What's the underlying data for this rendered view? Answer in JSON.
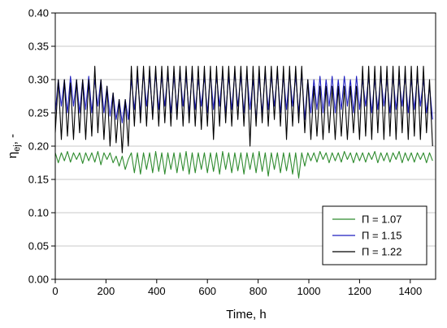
{
  "chart_data": {
    "type": "line",
    "xlabel": "Time, h",
    "ylabel": {
      "symbol": "η",
      "subscript": "ej",
      "suffix": ", -"
    },
    "xlim": [
      0,
      1500
    ],
    "ylim": [
      0,
      0.4
    ],
    "xticks": [
      0,
      200,
      400,
      600,
      800,
      1000,
      1200,
      1400
    ],
    "yticks": [
      {
        "value": 0,
        "label": "0.00"
      },
      {
        "value": 0.05,
        "label": "0.05"
      },
      {
        "value": 0.1,
        "label": "0.10"
      },
      {
        "value": 0.15,
        "label": "0.15"
      },
      {
        "value": 0.2,
        "label": "0.20"
      },
      {
        "value": 0.25,
        "label": "0.25"
      },
      {
        "value": 0.3,
        "label": "0.30"
      },
      {
        "value": 0.35,
        "label": "0.35"
      },
      {
        "value": 0.4,
        "label": "0.40"
      }
    ],
    "grid": true,
    "legend": "lower right",
    "x": [
      0,
      12,
      24,
      36,
      48,
      60,
      72,
      84,
      96,
      108,
      120,
      132,
      144,
      156,
      168,
      180,
      192,
      204,
      216,
      228,
      240,
      252,
      264,
      276,
      288,
      300,
      312,
      324,
      336,
      348,
      360,
      372,
      384,
      396,
      408,
      420,
      432,
      444,
      456,
      468,
      480,
      492,
      504,
      516,
      528,
      540,
      552,
      564,
      576,
      588,
      600,
      612,
      624,
      636,
      648,
      660,
      672,
      684,
      696,
      708,
      720,
      732,
      744,
      756,
      768,
      780,
      792,
      804,
      816,
      828,
      840,
      852,
      864,
      876,
      888,
      900,
      912,
      924,
      936,
      948,
      960,
      972,
      984,
      996,
      1008,
      1020,
      1032,
      1044,
      1056,
      1068,
      1080,
      1092,
      1104,
      1116,
      1128,
      1140,
      1152,
      1164,
      1176,
      1188,
      1200,
      1212,
      1224,
      1236,
      1248,
      1260,
      1272,
      1284,
      1296,
      1308,
      1320,
      1332,
      1344,
      1356,
      1368,
      1380,
      1392,
      1404,
      1416,
      1428,
      1440,
      1452,
      1464,
      1476,
      1488
    ],
    "series": [
      {
        "name": "Π = 1.07",
        "color": "#2e8b2e",
        "values": [
          0.19,
          0.175,
          0.19,
          0.178,
          0.192,
          0.176,
          0.19,
          0.18,
          0.19,
          0.174,
          0.19,
          0.178,
          0.19,
          0.176,
          0.192,
          0.172,
          0.19,
          0.18,
          0.19,
          0.175,
          0.185,
          0.17,
          0.185,
          0.165,
          0.18,
          0.19,
          0.16,
          0.19,
          0.158,
          0.19,
          0.165,
          0.19,
          0.16,
          0.192,
          0.162,
          0.19,
          0.158,
          0.19,
          0.165,
          0.19,
          0.16,
          0.19,
          0.163,
          0.192,
          0.158,
          0.19,
          0.16,
          0.19,
          0.165,
          0.19,
          0.16,
          0.19,
          0.162,
          0.19,
          0.158,
          0.192,
          0.165,
          0.19,
          0.16,
          0.19,
          0.163,
          0.19,
          0.158,
          0.19,
          0.165,
          0.19,
          0.16,
          0.192,
          0.162,
          0.19,
          0.155,
          0.19,
          0.165,
          0.19,
          0.16,
          0.19,
          0.163,
          0.19,
          0.158,
          0.19,
          0.152,
          0.19,
          0.17,
          0.19,
          0.178,
          0.19,
          0.176,
          0.192,
          0.18,
          0.19,
          0.175,
          0.19,
          0.178,
          0.19,
          0.176,
          0.192,
          0.18,
          0.19,
          0.175,
          0.19,
          0.178,
          0.19,
          0.176,
          0.19,
          0.18,
          0.192,
          0.175,
          0.19,
          0.178,
          0.19,
          0.176,
          0.19,
          0.18,
          0.192,
          0.175,
          0.19,
          0.178,
          0.19,
          0.176,
          0.19,
          0.18,
          0.19,
          0.175,
          0.19,
          0.178
        ]
      },
      {
        "name": "Π = 1.15",
        "color": "#1f1fbf",
        "values": [
          0.25,
          0.3,
          0.26,
          0.3,
          0.25,
          0.305,
          0.26,
          0.3,
          0.25,
          0.3,
          0.255,
          0.305,
          0.25,
          0.3,
          0.26,
          0.3,
          0.25,
          0.29,
          0.245,
          0.28,
          0.24,
          0.27,
          0.235,
          0.27,
          0.24,
          0.3,
          0.255,
          0.305,
          0.25,
          0.31,
          0.26,
          0.305,
          0.25,
          0.31,
          0.255,
          0.305,
          0.26,
          0.31,
          0.25,
          0.305,
          0.255,
          0.31,
          0.26,
          0.305,
          0.25,
          0.31,
          0.255,
          0.3,
          0.26,
          0.305,
          0.25,
          0.31,
          0.255,
          0.305,
          0.26,
          0.31,
          0.25,
          0.305,
          0.255,
          0.31,
          0.26,
          0.305,
          0.25,
          0.31,
          0.255,
          0.3,
          0.24,
          0.305,
          0.25,
          0.31,
          0.255,
          0.305,
          0.26,
          0.31,
          0.25,
          0.305,
          0.255,
          0.31,
          0.26,
          0.305,
          0.25,
          0.31,
          0.24,
          0.3,
          0.25,
          0.3,
          0.255,
          0.305,
          0.25,
          0.3,
          0.26,
          0.305,
          0.25,
          0.3,
          0.255,
          0.305,
          0.26,
          0.3,
          0.25,
          0.305,
          0.255,
          0.3,
          0.26,
          0.305,
          0.25,
          0.3,
          0.255,
          0.305,
          0.26,
          0.3,
          0.25,
          0.305,
          0.255,
          0.3,
          0.26,
          0.305,
          0.25,
          0.3,
          0.255,
          0.305,
          0.26,
          0.3,
          0.25,
          0.29,
          0.24
        ]
      },
      {
        "name": "Π = 1.22",
        "color": "#000000",
        "values": [
          0.22,
          0.3,
          0.21,
          0.3,
          0.215,
          0.295,
          0.21,
          0.3,
          0.22,
          0.3,
          0.21,
          0.3,
          0.215,
          0.32,
          0.22,
          0.3,
          0.21,
          0.29,
          0.2,
          0.28,
          0.205,
          0.27,
          0.19,
          0.27,
          0.2,
          0.32,
          0.23,
          0.32,
          0.235,
          0.32,
          0.23,
          0.32,
          0.24,
          0.32,
          0.23,
          0.32,
          0.235,
          0.32,
          0.23,
          0.32,
          0.24,
          0.32,
          0.23,
          0.32,
          0.235,
          0.32,
          0.23,
          0.32,
          0.225,
          0.32,
          0.23,
          0.32,
          0.21,
          0.32,
          0.23,
          0.32,
          0.235,
          0.32,
          0.23,
          0.32,
          0.24,
          0.32,
          0.23,
          0.32,
          0.2,
          0.32,
          0.23,
          0.32,
          0.235,
          0.32,
          0.23,
          0.32,
          0.24,
          0.32,
          0.23,
          0.32,
          0.21,
          0.32,
          0.23,
          0.32,
          0.235,
          0.32,
          0.22,
          0.3,
          0.21,
          0.29,
          0.215,
          0.29,
          0.21,
          0.29,
          0.22,
          0.29,
          0.21,
          0.29,
          0.215,
          0.29,
          0.21,
          0.29,
          0.22,
          0.29,
          0.21,
          0.32,
          0.215,
          0.32,
          0.21,
          0.32,
          0.22,
          0.32,
          0.21,
          0.32,
          0.215,
          0.32,
          0.21,
          0.32,
          0.22,
          0.32,
          0.21,
          0.32,
          0.215,
          0.32,
          0.21,
          0.32,
          0.22,
          0.3,
          0.2
        ]
      }
    ]
  }
}
